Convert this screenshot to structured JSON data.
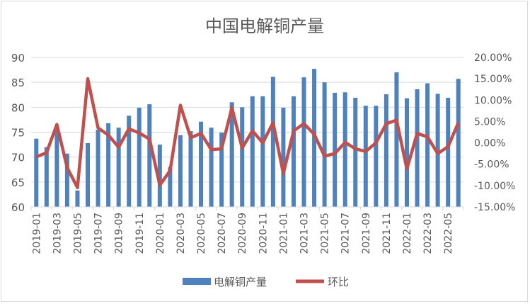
{
  "chart_data": {
    "type": "bar+line",
    "title": "中国电解铜产量",
    "categories": [
      "2019-01",
      "2019-02",
      "2019-03",
      "2019-04",
      "2019-05",
      "2019-06",
      "2019-07",
      "2019-08",
      "2019-09",
      "2019-10",
      "2019-11",
      "2019-12",
      "2020-01",
      "2020-02",
      "2020-03",
      "2020-04",
      "2020-05",
      "2020-06",
      "2020-07",
      "2020-08",
      "2020-09",
      "2020-10",
      "2020-11",
      "2020-12",
      "2021-01",
      "2021-02",
      "2021-03",
      "2021-04",
      "2021-05",
      "2021-06",
      "2021-07",
      "2021-08",
      "2021-09",
      "2021-10",
      "2021-11",
      "2021-12",
      "2022-01",
      "2022-02",
      "2022-03",
      "2022-04",
      "2022-05",
      "2022-06"
    ],
    "series": [
      {
        "name": "电解铜产量",
        "type": "bar",
        "axis": "left",
        "color": "#4f81bd",
        "values": [
          73.7,
          72.0,
          75.4,
          70.7,
          63.3,
          72.8,
          75.5,
          76.8,
          75.9,
          78.3,
          79.9,
          80.6,
          72.5,
          68.0,
          74.4,
          75.2,
          77.1,
          75.9,
          74.9,
          81.0,
          80.0,
          82.2,
          82.2,
          86.1,
          79.9,
          82.2,
          86.0,
          87.7,
          85.0,
          82.9,
          83.0,
          81.9,
          80.3,
          80.3,
          82.6,
          87.0,
          81.8,
          83.6,
          84.8,
          82.7,
          81.9,
          85.7
        ]
      },
      {
        "name": "环比",
        "type": "line",
        "axis": "right",
        "color": "#c0504d",
        "values": [
          -3.3,
          -2.3,
          4.3,
          -5.8,
          -10.5,
          15.0,
          3.5,
          1.8,
          -1.0,
          3.3,
          2.3,
          0.9,
          -9.9,
          -6.5,
          8.8,
          1.2,
          2.2,
          -1.6,
          -1.4,
          8.2,
          -1.2,
          2.8,
          0.0,
          4.7,
          -7.2,
          2.8,
          4.5,
          2.0,
          -3.1,
          -2.5,
          0.1,
          -1.4,
          -2.0,
          0.0,
          4.5,
          5.3,
          -6.1,
          2.2,
          1.4,
          -2.5,
          -0.9,
          4.7
        ]
      }
    ],
    "left_axis": {
      "ylim": [
        60,
        90
      ],
      "ticks": [
        "60",
        "65",
        "70",
        "75",
        "80",
        "85",
        "90"
      ]
    },
    "right_axis": {
      "ylim": [
        -15,
        20
      ],
      "ticks": [
        "-15.00%",
        "-10.00%",
        "-5.00%",
        "0.00%",
        "5.00%",
        "10.00%",
        "15.00%",
        "20.00%"
      ]
    },
    "x_tick_labels_every": 2,
    "grid": true,
    "legend": "bottom"
  }
}
